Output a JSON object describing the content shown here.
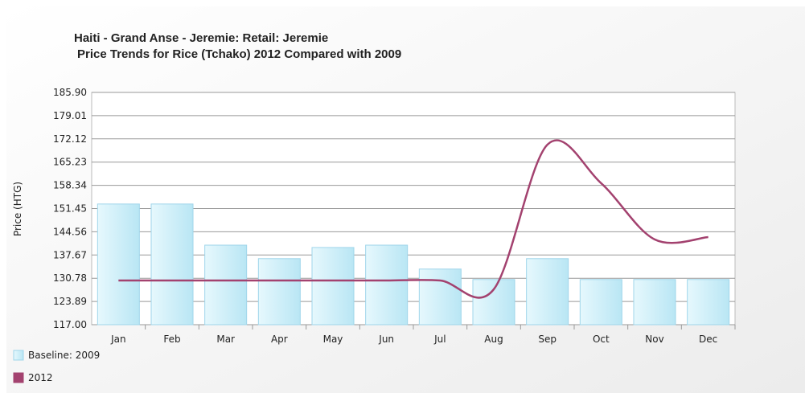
{
  "chart_data": {
    "type": "bar",
    "title": "Haiti - Grand Anse - Jeremie: Retail: Jeremie",
    "subtitle": "Price Trends for Rice (Tchako) 2012 Compared with 2009",
    "y_label": "Price (HTG)",
    "categories": [
      "Jan",
      "Feb",
      "Mar",
      "Apr",
      "May",
      "Jun",
      "Jul",
      "Aug",
      "Sep",
      "Oct",
      "Nov",
      "Dec"
    ],
    "series": [
      {
        "name": "Baseline: 2009",
        "type": "bar",
        "color": "#c8eef9",
        "values": [
          152.8,
          152.8,
          140.6,
          136.6,
          139.9,
          140.6,
          133.5,
          130.4,
          136.6,
          130.4,
          130.4,
          130.4
        ]
      },
      {
        "name": "2012",
        "type": "line",
        "color": "#a3426f",
        "values": [
          130.1,
          130.1,
          130.1,
          130.1,
          130.1,
          130.1,
          130.1,
          127.5,
          170.4,
          159.0,
          142.3,
          143.0
        ]
      }
    ],
    "ylim": [
      117.0,
      185.9
    ],
    "yticks": [
      {
        "value": 117.0,
        "label": "117.00"
      },
      {
        "value": 123.89,
        "label": "123.89"
      },
      {
        "value": 130.78,
        "label": "130.78"
      },
      {
        "value": 137.67,
        "label": "137.67"
      },
      {
        "value": 144.56,
        "label": "144.56"
      },
      {
        "value": 151.45,
        "label": "151.45"
      },
      {
        "value": 158.34,
        "label": "158.34"
      },
      {
        "value": 165.23,
        "label": "165.23"
      },
      {
        "value": 172.12,
        "label": "172.12"
      },
      {
        "value": 179.01,
        "label": "179.01"
      },
      {
        "value": 185.9,
        "label": "185.90"
      }
    ],
    "grid": true
  }
}
